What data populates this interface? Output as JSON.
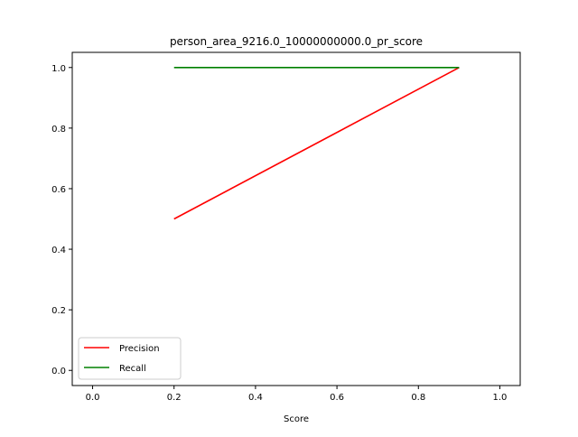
{
  "chart_data": {
    "type": "line",
    "title": "person_area_9216.0_10000000000.0_pr_score",
    "xlabel": "Score",
    "ylabel": "",
    "xlim": [
      -0.05,
      1.05
    ],
    "ylim": [
      -0.05,
      1.05
    ],
    "xticks": [
      0.0,
      0.2,
      0.4,
      0.6,
      0.8,
      1.0
    ],
    "xtick_labels": [
      "0.0",
      "0.2",
      "0.4",
      "0.6",
      "0.8",
      "1.0"
    ],
    "yticks": [
      0.0,
      0.2,
      0.4,
      0.6,
      0.8,
      1.0
    ],
    "ytick_labels": [
      "0.0",
      "0.2",
      "0.4",
      "0.6",
      "0.8",
      "1.0"
    ],
    "grid": false,
    "legend": {
      "position": "lower-left"
    },
    "series": [
      {
        "name": "Precision",
        "color": "#ff0000",
        "x": [
          0.2,
          0.9
        ],
        "y": [
          0.5,
          1.0
        ]
      },
      {
        "name": "Recall",
        "color": "#008000",
        "x": [
          0.2,
          0.9
        ],
        "y": [
          1.0,
          1.0
        ]
      }
    ]
  }
}
